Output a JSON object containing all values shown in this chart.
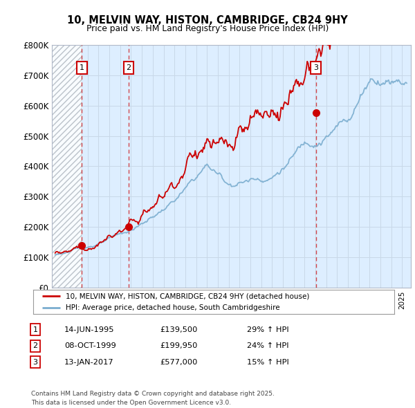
{
  "title": "10, MELVIN WAY, HISTON, CAMBRIDGE, CB24 9HY",
  "subtitle": "Price paid vs. HM Land Registry's House Price Index (HPI)",
  "ylim": [
    0,
    800000
  ],
  "yticks": [
    0,
    100000,
    200000,
    300000,
    400000,
    500000,
    600000,
    700000,
    800000
  ],
  "ytick_labels": [
    "£0",
    "£100K",
    "£200K",
    "£300K",
    "£400K",
    "£500K",
    "£600K",
    "£700K",
    "£800K"
  ],
  "xlim_start": 1992.7,
  "xlim_end": 2025.8,
  "sale_dates": [
    1995.45,
    1999.78,
    2017.04
  ],
  "sale_prices": [
    139500,
    199950,
    577000
  ],
  "sale_labels": [
    "1",
    "2",
    "3"
  ],
  "sale_info": [
    {
      "num": "1",
      "date": "14-JUN-1995",
      "price": "£139,500",
      "hpi": "29% ↑ HPI"
    },
    {
      "num": "2",
      "date": "08-OCT-1999",
      "price": "£199,950",
      "hpi": "24% ↑ HPI"
    },
    {
      "num": "3",
      "date": "13-JAN-2017",
      "price": "£577,000",
      "hpi": "15% ↑ HPI"
    }
  ],
  "line_color_red": "#cc0000",
  "line_color_blue": "#7aadcf",
  "grid_color": "#c8d8e8",
  "bg_color": "#ddeeff",
  "plot_bg": "#ffffff",
  "legend_label_red": "10, MELVIN WAY, HISTON, CAMBRIDGE, CB24 9HY (detached house)",
  "legend_label_blue": "HPI: Average price, detached house, South Cambridgeshire",
  "footer": "Contains HM Land Registry data © Crown copyright and database right 2025.\nThis data is licensed under the Open Government Licence v3.0."
}
